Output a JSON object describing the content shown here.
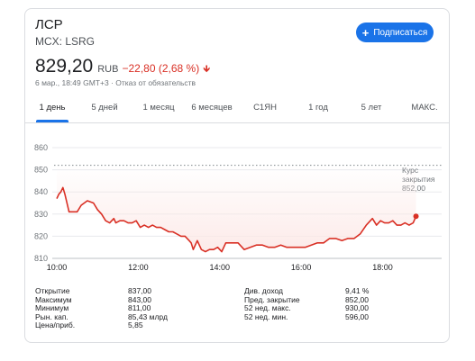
{
  "header": {
    "name": "ЛСР",
    "ticker": "MCX: LSRG",
    "subscribe_label": "Подписаться"
  },
  "quote": {
    "price": "829,20",
    "currency": "RUB",
    "change": "−22,80 (2,68 %)",
    "meta": "6 мар., 18:49 GMT+3 · Отказ от обязательств"
  },
  "tabs": [
    {
      "label": "1 день",
      "active": true
    },
    {
      "label": "5 дней",
      "active": false
    },
    {
      "label": "1 месяц",
      "active": false
    },
    {
      "label": "6 месяцев",
      "active": false
    },
    {
      "label": "С1ЯН",
      "active": false
    },
    {
      "label": "1 год",
      "active": false
    },
    {
      "label": "5 лет",
      "active": false
    },
    {
      "label": "МАКС.",
      "active": false
    }
  ],
  "chart_data": {
    "type": "line",
    "x": [
      10.0,
      10.05,
      10.1,
      10.15,
      10.2,
      10.25,
      10.3,
      10.4,
      10.5,
      10.6,
      10.75,
      10.9,
      11.0,
      11.1,
      11.2,
      11.3,
      11.4,
      11.45,
      11.55,
      11.65,
      11.75,
      11.85,
      11.95,
      12.05,
      12.15,
      12.25,
      12.35,
      12.45,
      12.55,
      12.65,
      12.75,
      12.85,
      12.95,
      13.05,
      13.15,
      13.25,
      13.3,
      13.35,
      13.45,
      13.55,
      13.65,
      13.75,
      13.85,
      13.95,
      14.05,
      14.15,
      14.3,
      14.45,
      14.6,
      14.75,
      14.9,
      15.05,
      15.2,
      15.35,
      15.5,
      15.65,
      15.8,
      15.95,
      16.1,
      16.25,
      16.4,
      16.55,
      16.7,
      16.85,
      17.0,
      17.15,
      17.3,
      17.45,
      17.6,
      17.75,
      17.85,
      17.95,
      18.05,
      18.15,
      18.25,
      18.35,
      18.45,
      18.55,
      18.65,
      18.75,
      18.82
    ],
    "values": [
      837,
      839,
      840,
      842,
      839,
      835,
      831,
      831,
      831,
      834,
      836,
      835,
      832,
      830,
      827,
      826,
      828,
      826,
      827,
      827,
      826,
      826,
      827,
      824,
      825,
      824,
      825,
      824,
      824,
      823,
      822,
      822,
      821,
      820,
      820,
      818,
      817,
      814,
      818,
      814,
      813,
      814,
      814,
      815,
      813,
      817,
      817,
      817,
      814,
      815,
      816,
      816,
      815,
      815,
      816,
      815,
      815,
      815,
      815,
      816,
      817,
      817,
      819,
      819,
      818,
      819,
      819,
      821,
      825,
      828,
      825,
      827,
      826,
      826,
      827,
      825,
      825,
      826,
      825,
      826,
      829
    ],
    "close_value": 852,
    "close_label": "Курс закрытия",
    "close_value_label": "852,00",
    "xticks": [
      "10:00",
      "12:00",
      "14:00",
      "16:00",
      "18:00"
    ],
    "xtick_values": [
      10,
      12,
      14,
      16,
      18
    ],
    "yticks": [
      "810",
      "820",
      "830",
      "840",
      "850",
      "860"
    ],
    "ytick_values": [
      810,
      820,
      830,
      840,
      850,
      860
    ],
    "ylim": [
      810,
      860
    ],
    "xlim": [
      10,
      19.45
    ],
    "grid": true,
    "line_color": "#d93025",
    "fill_color": "#fce8e6"
  },
  "stats": {
    "left": [
      {
        "label": "Открытие",
        "value": "837,00"
      },
      {
        "label": "Максимум",
        "value": "843,00"
      },
      {
        "label": "Минимум",
        "value": "811,00"
      },
      {
        "label": "Рын. кап.",
        "value": "85,43 млрд"
      },
      {
        "label": "Цена/приб.",
        "value": "5,85"
      }
    ],
    "right": [
      {
        "label": "Див. доход",
        "value": "9,41 %"
      },
      {
        "label": "Пред. закрытие",
        "value": "852,00"
      },
      {
        "label": "52 нед. макс.",
        "value": "930,00"
      },
      {
        "label": "52 нед. мин.",
        "value": "596,00"
      }
    ]
  }
}
